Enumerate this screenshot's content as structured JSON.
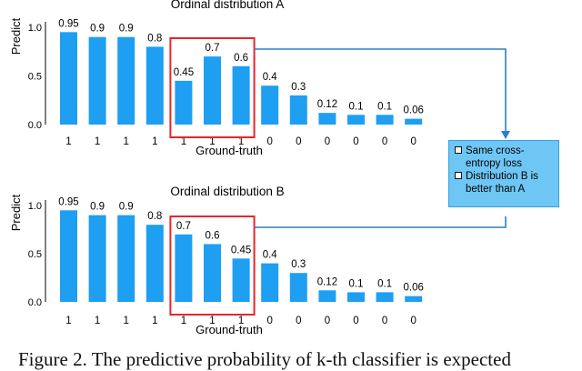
{
  "chart_data": [
    {
      "type": "bar",
      "title": "Ordinal distribution A",
      "ylabel": "Predict",
      "xlabel": "Ground-truth",
      "ylim": [
        0,
        1.0
      ],
      "yticks": [
        "0.0",
        "0.5",
        "1.0"
      ],
      "categories": [
        "1",
        "1",
        "1",
        "1",
        "1",
        "1",
        "1",
        "0",
        "0",
        "0",
        "0",
        "0",
        "0"
      ],
      "values": [
        0.95,
        0.9,
        0.9,
        0.8,
        0.45,
        0.7,
        0.6,
        0.4,
        0.3,
        0.12,
        0.1,
        0.1,
        0.06
      ],
      "value_labels": [
        "0.95",
        "0.9",
        "0.9",
        "0.8",
        "0.45",
        "0.7",
        "0.6",
        "0.4",
        "0.3",
        "0.12",
        "0.1",
        "0.1",
        "0.06"
      ],
      "highlight_indices": [
        4,
        5,
        6
      ],
      "bar_color": "#1e9ff2",
      "highlight_color": "#e8262a",
      "grid": false,
      "legend": "none"
    },
    {
      "type": "bar",
      "title": "Ordinal distribution B",
      "ylabel": "Predict",
      "xlabel": "Ground-truth",
      "ylim": [
        0,
        1.0
      ],
      "yticks": [
        "0.0",
        "0.5",
        "1.0"
      ],
      "categories": [
        "1",
        "1",
        "1",
        "1",
        "1",
        "1",
        "1",
        "0",
        "0",
        "0",
        "0",
        "0",
        "0"
      ],
      "values": [
        0.95,
        0.9,
        0.9,
        0.8,
        0.7,
        0.6,
        0.45,
        0.4,
        0.3,
        0.12,
        0.1,
        0.1,
        0.06
      ],
      "value_labels": [
        "0.95",
        "0.9",
        "0.9",
        "0.8",
        "0.7",
        "0.6",
        "0.45",
        "0.4",
        "0.3",
        "0.12",
        "0.1",
        "0.1",
        "0.06"
      ],
      "highlight_indices": [
        4,
        5,
        6
      ],
      "bar_color": "#1e9ff2",
      "highlight_color": "#e8262a",
      "grid": false,
      "legend": "none"
    }
  ],
  "note": {
    "items": [
      "Same cross-entropy loss",
      "Distribution B is better than A"
    ],
    "background": "#6ec6f5",
    "arrow_color": "#2b7fc6"
  },
  "caption": "Figure 2. The predictive probability of k-th classifier is expected"
}
